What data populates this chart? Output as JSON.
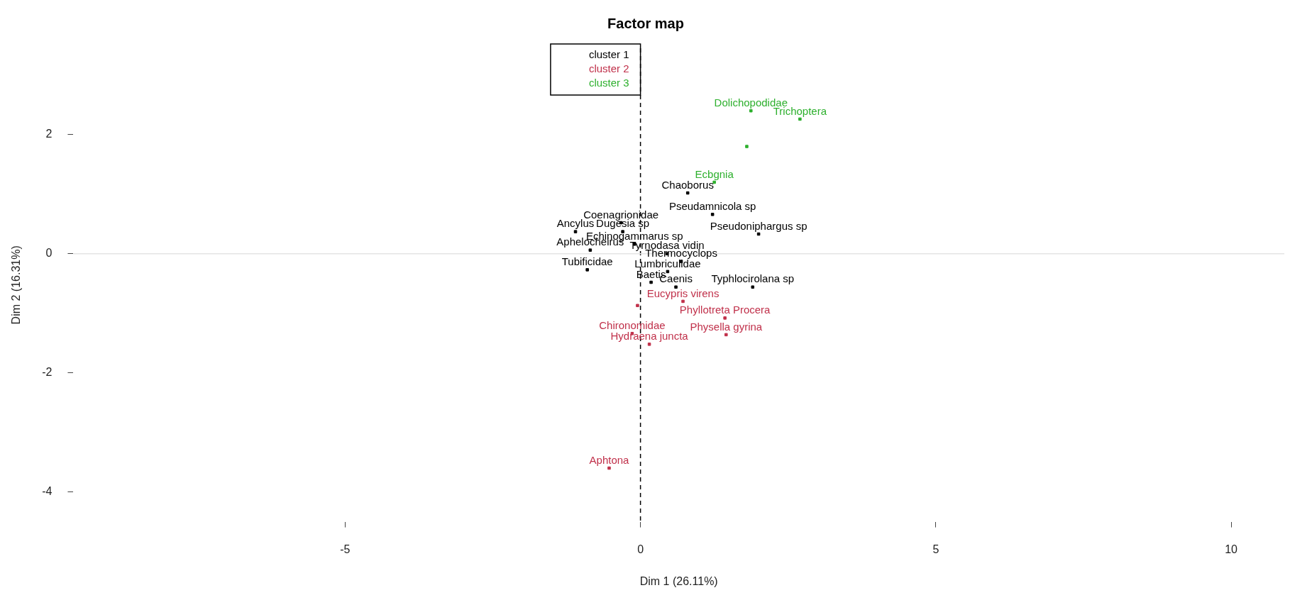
{
  "chart_data": {
    "type": "scatter",
    "title": "Factor map",
    "xlabel": "Dim 1 (26.11%)",
    "ylabel": "Dim 2 (16.31%)",
    "xlim": [
      -9.6,
      10.9
    ],
    "ylim": [
      -4.5,
      3.45
    ],
    "xticks": [
      -5,
      0,
      5,
      10
    ],
    "yticks": [
      -4,
      -2,
      0,
      2
    ],
    "grid": false,
    "legend": "top",
    "marker": "square",
    "ref_lines": [
      {
        "axis": "x",
        "value": 0,
        "color": "#000000",
        "line_style": "dashed"
      },
      {
        "axis": "y",
        "value": 0,
        "color": "#e4e4e4",
        "line_style": "solid"
      }
    ],
    "series": [
      {
        "name": "cluster 1",
        "color": "#000000",
        "x": [
          0.8,
          1.22,
          -0.33,
          -1.1,
          -0.3,
          2.0,
          -0.1,
          -0.85,
          0.45,
          0.69,
          -0.9,
          0.46,
          0.18,
          0.6,
          1.9
        ],
        "values": [
          1.02,
          0.66,
          0.52,
          0.37,
          0.37,
          0.33,
          0.16,
          0.06,
          0.0,
          -0.13,
          -0.27,
          -0.3,
          -0.48,
          -0.56,
          -0.56
        ],
        "value_labels": [
          "Chaoborus",
          "Pseudamnicola sp",
          "Coenagrionidae",
          "Ancylus",
          "Dugesia sp",
          "Pseudoniphargus sp",
          "Echinogammarus sp",
          "Aphelocheirus",
          "Tyrnodasa vidin",
          "Thermocyclops",
          "Tubificidae",
          "Lumbriculidae",
          "Baetis",
          "Caenis",
          "Typhlocirolana sp"
        ]
      },
      {
        "name": "cluster 2",
        "color": "#c0304a",
        "x": [
          0.72,
          -0.05,
          1.43,
          -0.14,
          1.45,
          0.15,
          -0.53
        ],
        "values": [
          -0.8,
          -0.87,
          -1.08,
          -1.34,
          -1.36,
          -1.52,
          -3.6
        ],
        "value_labels": [
          "Eucypris virens",
          null,
          "Phyllotreta Procera",
          "Chironomidae",
          "Physella gyrina",
          "Hydraena juncta",
          "Aphtona"
        ]
      },
      {
        "name": "cluster 3",
        "color": "#2eb02e",
        "x": [
          1.87,
          2.7,
          1.8,
          1.25
        ],
        "values": [
          2.4,
          2.26,
          1.8,
          1.2
        ],
        "value_labels": [
          "Dolichopodidae",
          "Trichoptera",
          null,
          "Ecbgnia"
        ]
      }
    ]
  }
}
